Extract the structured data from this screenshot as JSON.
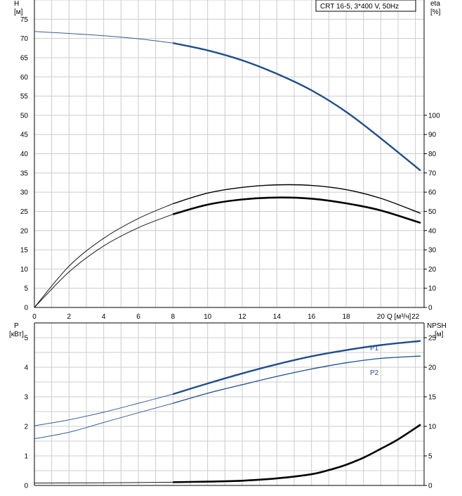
{
  "legend_box": "CRT 16-5, 3*400 V, 50Hz",
  "colors": {
    "blue": "#1f4e8c",
    "black": "#000000",
    "grid": "#cccccc",
    "axis": "#000000"
  },
  "chart_data": [
    {
      "type": "line",
      "panel": "top",
      "ylabel_left": [
        "H",
        "[м]"
      ],
      "ylabel_right": [
        "eta",
        "[%]"
      ],
      "xlabel": "Q [м³/ч]",
      "xlim": [
        0,
        22.5
      ],
      "ylim_left": [
        0,
        80
      ],
      "ylim_right": [
        0,
        160
      ],
      "x_ticks": [
        0,
        2,
        4,
        6,
        8,
        10,
        12,
        14,
        16,
        18,
        20,
        22
      ],
      "y_ticks_left": [
        0,
        5,
        10,
        15,
        20,
        25,
        30,
        35,
        40,
        45,
        50,
        55,
        60,
        65,
        70,
        75
      ],
      "y_ticks_right": [
        0,
        10,
        20,
        30,
        40,
        50,
        60,
        70,
        80,
        90,
        100
      ],
      "series": [
        {
          "key": "H",
          "axis": "left",
          "color": "#1f4e8c",
          "split_x": 8,
          "x": [
            0,
            2,
            4,
            6,
            8,
            10,
            12,
            14,
            16,
            18,
            20,
            22.3
          ],
          "y": [
            71.8,
            71.3,
            70.7,
            69.9,
            68.8,
            66.9,
            64.3,
            60.8,
            56.5,
            50.9,
            44.0,
            35.6
          ]
        },
        {
          "key": "eta_thin",
          "axis": "right",
          "color": "#000000",
          "split_x": 8,
          "x": [
            0,
            2,
            4,
            6,
            8,
            10,
            12,
            14,
            16,
            18,
            20,
            22.3
          ],
          "y": [
            0,
            21.5,
            36.0,
            46.3,
            54.0,
            59.5,
            62.5,
            63.8,
            63.5,
            61.3,
            56.8,
            49.0
          ]
        },
        {
          "key": "eta_bold",
          "axis": "right",
          "color": "#000000",
          "split_x": 8,
          "x": [
            0,
            2,
            4,
            6,
            8,
            10,
            12,
            14,
            16,
            18,
            20,
            22.3
          ],
          "y": [
            0,
            18.5,
            32.0,
            41.5,
            48.5,
            53.5,
            56.2,
            57.2,
            56.6,
            54.2,
            50.5,
            44.0
          ]
        }
      ]
    },
    {
      "type": "line",
      "panel": "bottom",
      "ylabel_left": [
        "P",
        "[кВт]"
      ],
      "ylabel_right": [
        "NPSH",
        "[м]"
      ],
      "xlim": [
        0,
        22.5
      ],
      "ylim_left": [
        0,
        5.5
      ],
      "ylim_right": [
        0,
        27.5
      ],
      "y_ticks_left": [
        0,
        1,
        2,
        3,
        4,
        5
      ],
      "y_ticks_right": [
        0,
        5,
        10,
        15,
        20,
        25
      ],
      "series": [
        {
          "key": "P1",
          "name": "P1",
          "axis": "left",
          "color": "#1f4e8c",
          "split_x": 8,
          "x": [
            0,
            2,
            4,
            6,
            8,
            10,
            12,
            14,
            16,
            18,
            20,
            22.3
          ],
          "y": [
            2.02,
            2.22,
            2.48,
            2.78,
            3.09,
            3.45,
            3.79,
            4.1,
            4.37,
            4.58,
            4.75,
            4.89
          ]
        },
        {
          "key": "P2",
          "name": "P2",
          "axis": "left",
          "color": "#1f4e8c",
          "split_x": 8,
          "x": [
            0,
            2,
            4,
            6,
            8,
            10,
            12,
            14,
            16,
            18,
            20,
            22.3
          ],
          "y": [
            1.58,
            1.8,
            2.13,
            2.46,
            2.78,
            3.12,
            3.41,
            3.69,
            3.94,
            4.15,
            4.3,
            4.38
          ]
        },
        {
          "key": "NPSH",
          "axis": "right",
          "color": "#000000",
          "split_x": 8,
          "x": [
            0,
            4,
            8,
            10,
            12,
            14,
            16,
            17,
            18,
            19,
            20,
            21,
            22.3
          ],
          "y": [
            0.4,
            0.45,
            0.55,
            0.65,
            0.8,
            1.2,
            1.9,
            2.6,
            3.5,
            4.7,
            6.2,
            7.8,
            10.3
          ]
        }
      ]
    }
  ]
}
